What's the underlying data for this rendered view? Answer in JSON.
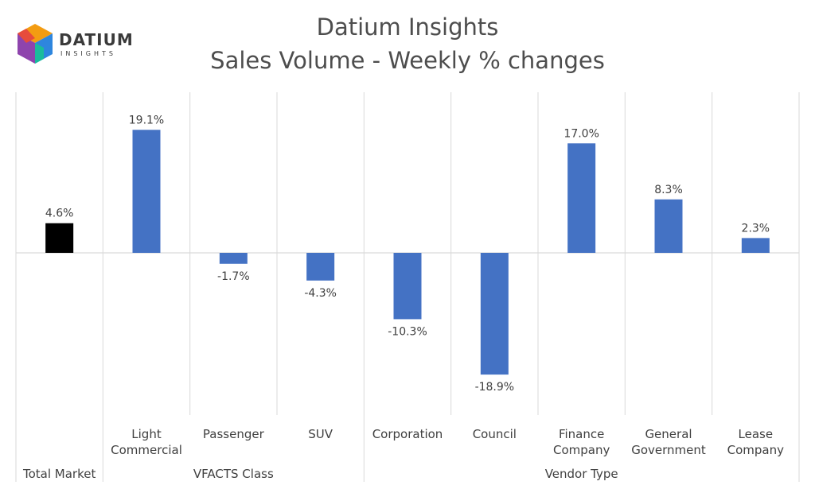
{
  "logo": {
    "word": "DATIUM",
    "sub": "INSIGHTS"
  },
  "colors": {
    "bar": "#4472C4",
    "total_bar": "#000000",
    "grid": "#d9d9d9",
    "axis": "#d9d9d9"
  },
  "chart_data": {
    "type": "bar",
    "title": "Datium Insights",
    "subtitle": "Sales Volume - Weekly % changes",
    "categories": [
      [
        "Total Market"
      ],
      [
        "Light",
        "Commercial"
      ],
      [
        "Passenger"
      ],
      [
        "SUV"
      ],
      [
        "Corporation"
      ],
      [
        "Council"
      ],
      [
        "Finance",
        "Company"
      ],
      [
        "General",
        "Government"
      ],
      [
        "Lease",
        "Company"
      ]
    ],
    "values": [
      4.6,
      19.1,
      -1.7,
      -4.3,
      -10.3,
      -18.9,
      17.0,
      8.3,
      2.3
    ],
    "value_labels": [
      "4.6%",
      "19.1%",
      "-1.7%",
      "-4.3%",
      "-10.3%",
      "-18.9%",
      "17.0%",
      "8.3%",
      "2.3%"
    ],
    "groups": [
      {
        "label": "Total Market",
        "start": 0,
        "end": 0
      },
      {
        "label": "VFACTS Class",
        "start": 1,
        "end": 3
      },
      {
        "label": "Vendor Type",
        "start": 4,
        "end": 8
      }
    ],
    "ylim": [
      -25,
      25
    ],
    "grid": false,
    "legend": "none"
  }
}
